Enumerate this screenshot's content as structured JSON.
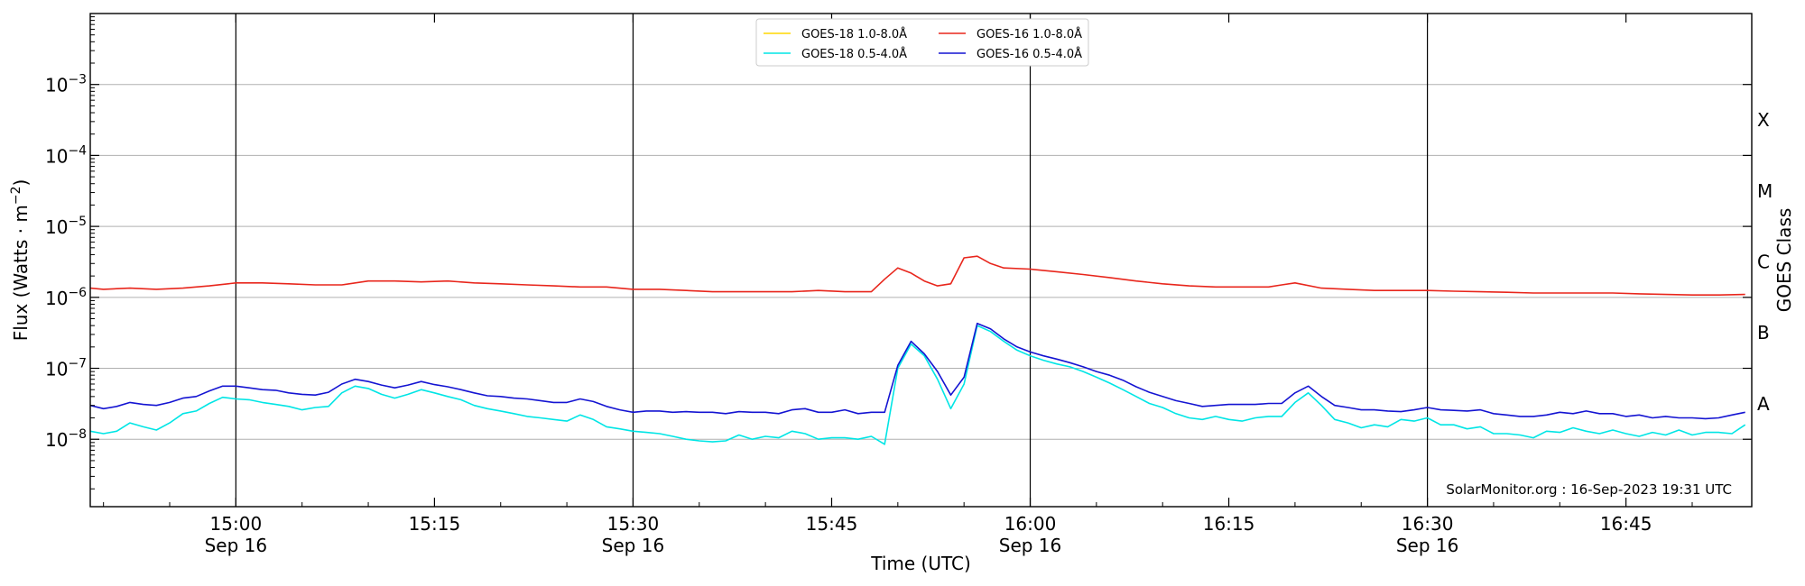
{
  "chart_data": {
    "type": "line",
    "xlabel": "Time (UTC)",
    "ylabel_main": "Flux (Watts · m",
    "ylabel_sup": "−2",
    "ylabel_close": ")",
    "ylabel_right": "GOES Class",
    "credit": "SolarMonitor.org : 16-Sep-2023 19:31 UTC",
    "x_unit": "minutes after 14:00 UTC, 16-Sep-2023",
    "xlim": [
      49,
      174.5
    ],
    "ylim_log10": [
      -8.95,
      -2.0
    ],
    "y_scale": "log",
    "grid": "horizontal at decades",
    "legend_position": "top-center",
    "x_ticks": [
      {
        "x": 60,
        "label": "15:00",
        "sub": "Sep 16",
        "vline": true
      },
      {
        "x": 75,
        "label": "15:15",
        "sub": "",
        "vline": false
      },
      {
        "x": 90,
        "label": "15:30",
        "sub": "Sep 16",
        "vline": true
      },
      {
        "x": 105,
        "label": "15:45",
        "sub": "",
        "vline": false
      },
      {
        "x": 120,
        "label": "16:00",
        "sub": "Sep 16",
        "vline": true
      },
      {
        "x": 135,
        "label": "16:15",
        "sub": "",
        "vline": false
      },
      {
        "x": 150,
        "label": "16:30",
        "sub": "Sep 16",
        "vline": true
      },
      {
        "x": 165,
        "label": "16:45",
        "sub": "",
        "vline": false
      }
    ],
    "y_ticks": [
      {
        "exp": -8,
        "base": "10",
        "sup": "−8"
      },
      {
        "exp": -7,
        "base": "10",
        "sup": "−7"
      },
      {
        "exp": -6,
        "base": "10",
        "sup": "−6"
      },
      {
        "exp": -5,
        "base": "10",
        "sup": "−5"
      },
      {
        "exp": -4,
        "base": "10",
        "sup": "−4"
      },
      {
        "exp": -3,
        "base": "10",
        "sup": "−3"
      }
    ],
    "class_labels": [
      {
        "exp": -7.5,
        "label": "A"
      },
      {
        "exp": -6.5,
        "label": "B"
      },
      {
        "exp": -5.5,
        "label": "C"
      },
      {
        "exp": -4.5,
        "label": "M"
      },
      {
        "exp": -3.5,
        "label": "X"
      }
    ],
    "series": [
      {
        "name": "GOES-18 1.0-8.0Å",
        "color": "#FFD700",
        "x": [],
        "y": []
      },
      {
        "name": "GOES-16 1.0-8.0Å",
        "color": "#E8261C",
        "x": [
          49,
          50,
          52,
          54,
          56,
          58,
          60,
          62,
          64,
          66,
          68,
          70,
          72,
          74,
          76,
          78,
          80,
          82,
          84,
          86,
          88,
          90,
          92,
          94,
          96,
          98,
          100,
          102,
          104,
          106,
          108,
          109,
          110,
          111,
          112,
          113,
          114,
          115,
          116,
          117,
          118,
          120,
          122,
          124,
          126,
          128,
          130,
          132,
          134,
          136,
          138,
          139,
          140,
          142,
          144,
          146,
          148,
          150,
          152,
          154,
          156,
          158,
          160,
          162,
          164,
          166,
          168,
          170,
          172,
          174
        ],
        "y": [
          1.35e-06,
          1.3e-06,
          1.35e-06,
          1.3e-06,
          1.35e-06,
          1.45e-06,
          1.6e-06,
          1.6e-06,
          1.55e-06,
          1.5e-06,
          1.5e-06,
          1.7e-06,
          1.7e-06,
          1.65e-06,
          1.7e-06,
          1.6e-06,
          1.55e-06,
          1.5e-06,
          1.45e-06,
          1.4e-06,
          1.4e-06,
          1.3e-06,
          1.3e-06,
          1.25e-06,
          1.2e-06,
          1.2e-06,
          1.2e-06,
          1.2e-06,
          1.25e-06,
          1.2e-06,
          1.2e-06,
          1.8e-06,
          2.6e-06,
          2.2e-06,
          1.7e-06,
          1.45e-06,
          1.55e-06,
          3.6e-06,
          3.8e-06,
          3e-06,
          2.6e-06,
          2.5e-06,
          2.3e-06,
          2.1e-06,
          1.9e-06,
          1.7e-06,
          1.55e-06,
          1.45e-06,
          1.4e-06,
          1.4e-06,
          1.4e-06,
          1.5e-06,
          1.6e-06,
          1.35e-06,
          1.3e-06,
          1.25e-06,
          1.25e-06,
          1.25e-06,
          1.22e-06,
          1.2e-06,
          1.18e-06,
          1.15e-06,
          1.15e-06,
          1.15e-06,
          1.15e-06,
          1.12e-06,
          1.1e-06,
          1.08e-06,
          1.08e-06,
          1.1e-06
        ]
      },
      {
        "name": "GOES-18 0.5-4.0Å",
        "color": "#00E5E5",
        "x": [
          49,
          50,
          51,
          52,
          53,
          54,
          55,
          56,
          57,
          58,
          59,
          60,
          61,
          62,
          63,
          64,
          65,
          66,
          67,
          68,
          69,
          70,
          71,
          72,
          73,
          74,
          75,
          76,
          77,
          78,
          79,
          80,
          81,
          82,
          83,
          84,
          85,
          86,
          87,
          88,
          89,
          90,
          91,
          92,
          93,
          94,
          95,
          96,
          97,
          98,
          99,
          100,
          101,
          102,
          103,
          104,
          105,
          106,
          107,
          108,
          109,
          110,
          111,
          112,
          113,
          114,
          115,
          116,
          117,
          118,
          119,
          120,
          121,
          122,
          123,
          124,
          125,
          126,
          127,
          128,
          129,
          130,
          131,
          132,
          133,
          134,
          135,
          136,
          137,
          138,
          139,
          140,
          141,
          142,
          143,
          144,
          145,
          146,
          147,
          148,
          149,
          150,
          151,
          152,
          153,
          154,
          155,
          156,
          157,
          158,
          159,
          160,
          161,
          162,
          163,
          164,
          165,
          166,
          167,
          168,
          169,
          170,
          171,
          172,
          173,
          174
        ],
        "y": [
          1.3e-08,
          1.2e-08,
          1.3e-08,
          1.7e-08,
          1.5e-08,
          1.35e-08,
          1.7e-08,
          2.3e-08,
          2.5e-08,
          3.2e-08,
          3.9e-08,
          3.7e-08,
          3.6e-08,
          3.3e-08,
          3.1e-08,
          2.9e-08,
          2.6e-08,
          2.8e-08,
          2.9e-08,
          4.5e-08,
          5.6e-08,
          5.2e-08,
          4.3e-08,
          3.8e-08,
          4.3e-08,
          5e-08,
          4.5e-08,
          4e-08,
          3.6e-08,
          3e-08,
          2.7e-08,
          2.5e-08,
          2.3e-08,
          2.1e-08,
          2e-08,
          1.9e-08,
          1.8e-08,
          2.2e-08,
          1.9e-08,
          1.5e-08,
          1.4e-08,
          1.3e-08,
          1.25e-08,
          1.2e-08,
          1.1e-08,
          1e-08,
          9.5e-09,
          9.2e-09,
          9.5e-09,
          1.15e-08,
          1e-08,
          1.1e-08,
          1.05e-08,
          1.3e-08,
          1.2e-08,
          1e-08,
          1.05e-08,
          1.05e-08,
          1e-08,
          1.1e-08,
          8.5e-09,
          1e-07,
          2.2e-07,
          1.5e-07,
          7e-08,
          2.7e-08,
          6e-08,
          4e-07,
          3.3e-07,
          2.4e-07,
          1.8e-07,
          1.5e-07,
          1.3e-07,
          1.15e-07,
          1.05e-07,
          9e-08,
          7.5e-08,
          6.2e-08,
          5e-08,
          4e-08,
          3.2e-08,
          2.8e-08,
          2.3e-08,
          2e-08,
          1.9e-08,
          2.1e-08,
          1.9e-08,
          1.8e-08,
          2e-08,
          2.1e-08,
          2.1e-08,
          3.3e-08,
          4.5e-08,
          3e-08,
          1.9e-08,
          1.7e-08,
          1.45e-08,
          1.6e-08,
          1.5e-08,
          1.9e-08,
          1.8e-08,
          2e-08,
          1.6e-08,
          1.6e-08,
          1.4e-08,
          1.5e-08,
          1.2e-08,
          1.2e-08,
          1.15e-08,
          1.05e-08,
          1.3e-08,
          1.25e-08,
          1.45e-08,
          1.3e-08,
          1.2e-08,
          1.35e-08,
          1.2e-08,
          1.1e-08,
          1.25e-08,
          1.15e-08,
          1.35e-08,
          1.15e-08,
          1.25e-08,
          1.25e-08,
          1.2e-08,
          1.6e-08
        ]
      },
      {
        "name": "GOES-16 0.5-4.0Å",
        "color": "#1414D2",
        "x": [
          49,
          50,
          51,
          52,
          53,
          54,
          55,
          56,
          57,
          58,
          59,
          60,
          61,
          62,
          63,
          64,
          65,
          66,
          67,
          68,
          69,
          70,
          71,
          72,
          73,
          74,
          75,
          76,
          77,
          78,
          79,
          80,
          81,
          82,
          83,
          84,
          85,
          86,
          87,
          88,
          89,
          90,
          91,
          92,
          93,
          94,
          95,
          96,
          97,
          98,
          99,
          100,
          101,
          102,
          103,
          104,
          105,
          106,
          107,
          108,
          109,
          110,
          111,
          112,
          113,
          114,
          115,
          116,
          117,
          118,
          119,
          120,
          121,
          122,
          123,
          124,
          125,
          126,
          127,
          128,
          129,
          130,
          131,
          132,
          133,
          134,
          135,
          136,
          137,
          138,
          139,
          140,
          141,
          142,
          143,
          144,
          145,
          146,
          147,
          148,
          149,
          150,
          151,
          152,
          153,
          154,
          155,
          156,
          157,
          158,
          159,
          160,
          161,
          162,
          163,
          164,
          165,
          166,
          167,
          168,
          169,
          170,
          171,
          172,
          173,
          174
        ],
        "y": [
          3e-08,
          2.7e-08,
          2.9e-08,
          3.3e-08,
          3.1e-08,
          3e-08,
          3.3e-08,
          3.8e-08,
          4e-08,
          4.8e-08,
          5.6e-08,
          5.6e-08,
          5.3e-08,
          5e-08,
          4.9e-08,
          4.5e-08,
          4.3e-08,
          4.2e-08,
          4.6e-08,
          6e-08,
          7e-08,
          6.5e-08,
          5.8e-08,
          5.3e-08,
          5.8e-08,
          6.5e-08,
          5.9e-08,
          5.5e-08,
          5e-08,
          4.5e-08,
          4.1e-08,
          4e-08,
          3.8e-08,
          3.7e-08,
          3.5e-08,
          3.3e-08,
          3.3e-08,
          3.7e-08,
          3.4e-08,
          2.9e-08,
          2.6e-08,
          2.4e-08,
          2.5e-08,
          2.5e-08,
          2.4e-08,
          2.45e-08,
          2.4e-08,
          2.4e-08,
          2.3e-08,
          2.45e-08,
          2.4e-08,
          2.4e-08,
          2.3e-08,
          2.6e-08,
          2.7e-08,
          2.4e-08,
          2.4e-08,
          2.6e-08,
          2.3e-08,
          2.4e-08,
          2.4e-08,
          1.1e-07,
          2.4e-07,
          1.6e-07,
          9e-08,
          4.2e-08,
          7.5e-08,
          4.3e-07,
          3.6e-07,
          2.6e-07,
          2e-07,
          1.7e-07,
          1.5e-07,
          1.35e-07,
          1.2e-07,
          1.05e-07,
          9e-08,
          8e-08,
          6.8e-08,
          5.5e-08,
          4.6e-08,
          4e-08,
          3.5e-08,
          3.2e-08,
          2.9e-08,
          3e-08,
          3.1e-08,
          3.1e-08,
          3.1e-08,
          3.2e-08,
          3.2e-08,
          4.5e-08,
          5.6e-08,
          4e-08,
          3e-08,
          2.8e-08,
          2.6e-08,
          2.6e-08,
          2.5e-08,
          2.45e-08,
          2.6e-08,
          2.8e-08,
          2.6e-08,
          2.55e-08,
          2.5e-08,
          2.6e-08,
          2.3e-08,
          2.2e-08,
          2.1e-08,
          2.1e-08,
          2.2e-08,
          2.4e-08,
          2.3e-08,
          2.5e-08,
          2.3e-08,
          2.3e-08,
          2.1e-08,
          2.2e-08,
          2e-08,
          2.1e-08,
          2e-08,
          2e-08,
          1.95e-08,
          2e-08,
          2.2e-08,
          2.4e-08
        ]
      }
    ],
    "legend_order": [
      0,
      2,
      1,
      3
    ]
  }
}
